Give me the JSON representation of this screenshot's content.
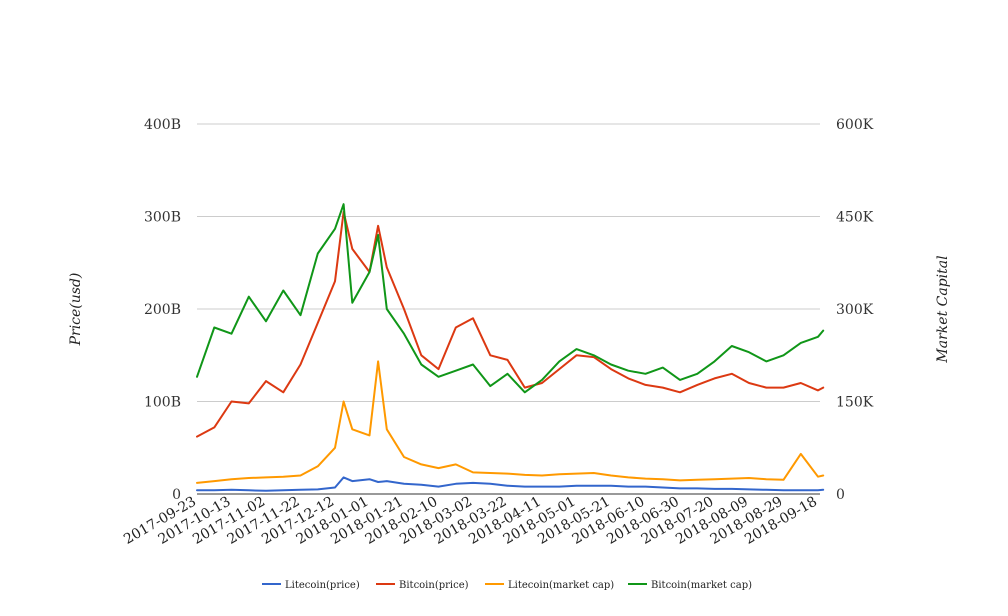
{
  "chart_data": {
    "type": "line",
    "title": "",
    "y_left_label": "Price(usd)",
    "y_right_label": "Market Capital",
    "y_left_ticks": [
      "0",
      "100B",
      "200B",
      "300B",
      "400B"
    ],
    "y_right_ticks": [
      "0",
      "150K",
      "300K",
      "450K",
      "600K"
    ],
    "ylim_left": [
      0,
      400
    ],
    "ylim_right": [
      0,
      600000
    ],
    "x_tick_labels": [
      "2017-09-23",
      "2017-10-13",
      "2017-11-02",
      "2017-11-22",
      "2017-12-12",
      "2018-01-01",
      "2018-01-21",
      "2018-02-10",
      "2018-03-02",
      "2018-03-22",
      "2018-04-11",
      "2018-05-01",
      "2018-05-21",
      "2018-06-10",
      "2018-06-30",
      "2018-07-20",
      "2018-08-09",
      "2018-08-29",
      "2018-09-18"
    ],
    "x": [
      "2017-09-23",
      "2017-10-03",
      "2017-10-13",
      "2017-10-23",
      "2017-11-02",
      "2017-11-12",
      "2017-11-22",
      "2017-12-02",
      "2017-12-12",
      "2017-12-17",
      "2017-12-22",
      "2018-01-01",
      "2018-01-06",
      "2018-01-11",
      "2018-01-21",
      "2018-01-31",
      "2018-02-10",
      "2018-02-20",
      "2018-03-02",
      "2018-03-12",
      "2018-03-22",
      "2018-04-01",
      "2018-04-11",
      "2018-04-21",
      "2018-05-01",
      "2018-05-11",
      "2018-05-21",
      "2018-05-31",
      "2018-06-10",
      "2018-06-20",
      "2018-06-30",
      "2018-07-10",
      "2018-07-20",
      "2018-07-30",
      "2018-08-09",
      "2018-08-19",
      "2018-08-29",
      "2018-09-08",
      "2018-09-18",
      "2018-09-21"
    ],
    "series": [
      {
        "name": "Litecoin(price)",
        "color": "#3366cc",
        "axis": "left",
        "values": [
          4,
          4,
          4.5,
          4,
          3.5,
          4,
          4.5,
          5,
          7,
          18,
          14,
          16,
          13,
          14,
          11,
          10,
          8,
          11,
          12,
          11,
          9,
          8,
          8,
          8,
          9,
          9,
          9,
          8,
          8,
          7,
          6,
          6,
          5.5,
          5.5,
          5,
          4.5,
          4,
          4,
          4,
          4.5
        ]
      },
      {
        "name": "Bitcoin(price)",
        "color": "#dc3912",
        "axis": "left",
        "values": [
          62,
          72,
          100,
          98,
          122,
          110,
          140,
          185,
          230,
          305,
          265,
          240,
          290,
          245,
          200,
          150,
          135,
          180,
          190,
          150,
          145,
          115,
          120,
          135,
          150,
          148,
          135,
          125,
          118,
          115,
          110,
          118,
          125,
          130,
          120,
          115,
          115,
          120,
          112,
          115
        ]
      },
      {
        "name": "Litecoin(market cap)",
        "color": "#ff9900",
        "axis": "right",
        "values": [
          18000,
          21000,
          24000,
          26000,
          27000,
          28000,
          30000,
          45000,
          75000,
          150000,
          105000,
          95000,
          215000,
          105000,
          60000,
          48000,
          42000,
          48000,
          35000,
          34000,
          33000,
          31000,
          30000,
          32000,
          33000,
          34000,
          30000,
          27000,
          25000,
          24000,
          22000,
          23000,
          24000,
          25000,
          26000,
          24000,
          23000,
          65000,
          28000,
          30000
        ]
      },
      {
        "name": "Bitcoin(market cap)",
        "color": "#109618",
        "axis": "right",
        "values": [
          190000,
          270000,
          260000,
          320000,
          280000,
          330000,
          290000,
          390000,
          430000,
          470000,
          310000,
          360000,
          420000,
          300000,
          260000,
          210000,
          190000,
          200000,
          210000,
          175000,
          195000,
          165000,
          185000,
          215000,
          235000,
          225000,
          210000,
          200000,
          195000,
          205000,
          185000,
          195000,
          215000,
          240000,
          230000,
          215000,
          225000,
          245000,
          255000,
          265000
        ]
      }
    ],
    "grid": true,
    "legend_position": "bottom"
  }
}
